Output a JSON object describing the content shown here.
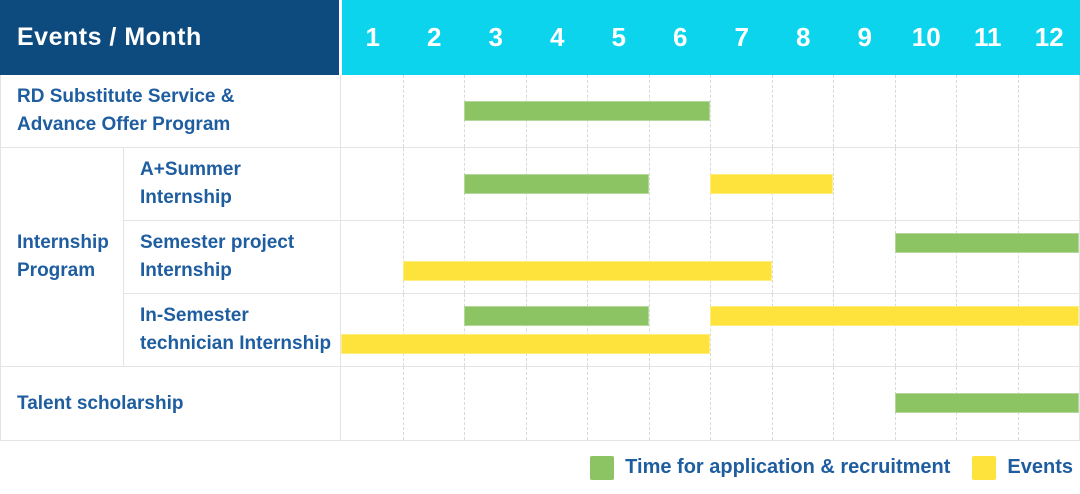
{
  "header": {
    "title": "Events / Month",
    "months": [
      "1",
      "2",
      "3",
      "4",
      "5",
      "6",
      "7",
      "8",
      "9",
      "10",
      "11",
      "12"
    ]
  },
  "table": {
    "group_label_lines": [
      "Internship",
      "Program"
    ],
    "rows": [
      {
        "label_lines": [
          "RD Substitute Service &",
          "Advance Offer Program"
        ]
      },
      {
        "label_lines": [
          "A+Summer",
          "Internship"
        ]
      },
      {
        "label_lines": [
          "Semester project",
          "Internship"
        ]
      },
      {
        "label_lines": [
          "In-Semester",
          "technician Internship"
        ]
      },
      {
        "label_lines": [
          "Talent scholarship"
        ]
      }
    ]
  },
  "legend": {
    "items": [
      {
        "label": "Time for application & recruitment",
        "color": "#8cc464"
      },
      {
        "label": "Events",
        "color": "#ffe33d"
      }
    ]
  },
  "colors": {
    "header_navy": "#0d4a7e",
    "header_cyan": "#0bd4ec",
    "label_text_blue": "#1e5d9f",
    "bar_green": "#8cc464",
    "bar_yellow": "#ffe33d",
    "grid_solid": "#e4e4e4",
    "grid_dashed": "#d9d9d9"
  },
  "chart_data": {
    "type": "bar",
    "variant": "gantt-timeline",
    "corner_label": "Events / Month",
    "x_labels": [
      "1",
      "2",
      "3",
      "4",
      "5",
      "6",
      "7",
      "8",
      "9",
      "10",
      "11",
      "12"
    ],
    "xlim": [
      1,
      12
    ],
    "grid": "vertical-dashed-per-month",
    "legend_position": "bottom-right",
    "series_legend": [
      {
        "name": "Time for application & recruitment",
        "color": "#8cc464"
      },
      {
        "name": "Events",
        "color": "#ffe33d"
      }
    ],
    "rows": [
      {
        "label": "RD Substitute Service & Advance Offer Program",
        "group": null,
        "bars": [
          {
            "series": "Time for application & recruitment",
            "start_month": 3,
            "end_month": 6,
            "band": "middle"
          }
        ]
      },
      {
        "label": "A+Summer Internship",
        "group": "Internship Program",
        "bars": [
          {
            "series": "Time for application & recruitment",
            "start_month": 3,
            "end_month": 5,
            "band": "middle"
          },
          {
            "series": "Events",
            "start_month": 7,
            "end_month": 8,
            "band": "middle"
          }
        ]
      },
      {
        "label": "Semester project Internship",
        "group": "Internship Program",
        "bars": [
          {
            "series": "Time for application & recruitment",
            "start_month": 10,
            "end_month": 12,
            "band": "top"
          },
          {
            "series": "Events",
            "start_month": 2,
            "end_month": 7,
            "band": "bottom"
          }
        ]
      },
      {
        "label": "In-Semester technician Internship",
        "group": "Internship Program",
        "bars": [
          {
            "series": "Time for application & recruitment",
            "start_month": 3,
            "end_month": 5,
            "band": "top"
          },
          {
            "series": "Events",
            "start_month": 7,
            "end_month": 12,
            "band": "top"
          },
          {
            "series": "Events",
            "start_month": 1,
            "end_month": 6,
            "band": "bottom"
          }
        ]
      },
      {
        "label": "Talent scholarship",
        "group": null,
        "bars": [
          {
            "series": "Time for application & recruitment",
            "start_month": 10,
            "end_month": 12,
            "band": "middle"
          }
        ]
      }
    ]
  }
}
